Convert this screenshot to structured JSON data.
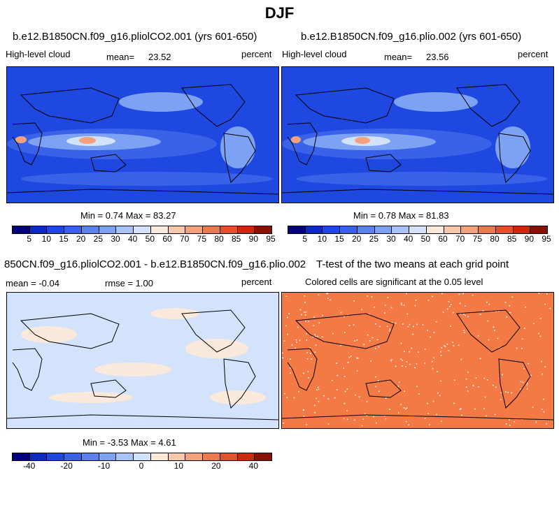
{
  "page_title": "DJF",
  "panels": [
    {
      "title": "b.e12.B1850CN.f09_g16.pliolCO2.001 (yrs 601-650)",
      "left_label": "High-level cloud",
      "mean_label": "mean=",
      "mean_value": "23.52",
      "units": "percent",
      "minmax": "Min =    0.74 Max =  83.27"
    },
    {
      "title": "b.e12.B1850CN.f09_g16.plio.002 (yrs 601-650)",
      "left_label": "High-level cloud",
      "mean_label": "mean=",
      "mean_value": "23.56",
      "units": "percent",
      "minmax": "Min =    0.78 Max =  81.83"
    },
    {
      "title": "850CN.f09_g16.pliolCO2.001 - b.e12.B1850CN.f09_g16.plio.002",
      "mean_text": "mean =   -0.04",
      "rmse_text": "rmse =    1.00",
      "units": "percent",
      "minmax": "Min =  -3.53 Max =    4.61"
    },
    {
      "title": "T-test of the two means at each grid point",
      "subtitle": "Colored cells are significant at the 0.05 level"
    }
  ],
  "colorbar_abs": {
    "labels": [
      "5",
      "10",
      "15",
      "20",
      "25",
      "30",
      "40",
      "50",
      "60",
      "70",
      "75",
      "80",
      "85",
      "90",
      "95"
    ],
    "colors": [
      "#00007f",
      "#0d2bbf",
      "#1f48e0",
      "#3a62e8",
      "#5a82ef",
      "#7da2f4",
      "#a8c4f8",
      "#d3e3fb",
      "#fbe9dc",
      "#f8c8aa",
      "#f3a27c",
      "#ec7a4f",
      "#e3522a",
      "#cc2a0e",
      "#8a0f04"
    ]
  },
  "colorbar_diff": {
    "labels": [
      "-40",
      "-20",
      "-10",
      "0",
      "10",
      "20",
      "40"
    ],
    "colors": [
      "#00007f",
      "#0d2bbf",
      "#1f48e0",
      "#3a62e8",
      "#5a82ef",
      "#7da2f4",
      "#a8c4f8",
      "#d3e3fb",
      "#fbe9dc",
      "#f8c8aa",
      "#f3a27c",
      "#ec7a4f",
      "#e3522a",
      "#cc2a0e",
      "#8a0f04"
    ]
  },
  "map_colors": {
    "ocean_base": "#1f48e0",
    "low_cloud": "#3a62e8",
    "mid_cloud": "#7da2f4",
    "high_cloud": "#d3e3fb",
    "peak_cloud": "#f3a27c",
    "diff_base": "#d3e3fb",
    "diff_positive": "#fbe9dc",
    "ttest_fill": "#f47a45",
    "coast": "#000000"
  }
}
